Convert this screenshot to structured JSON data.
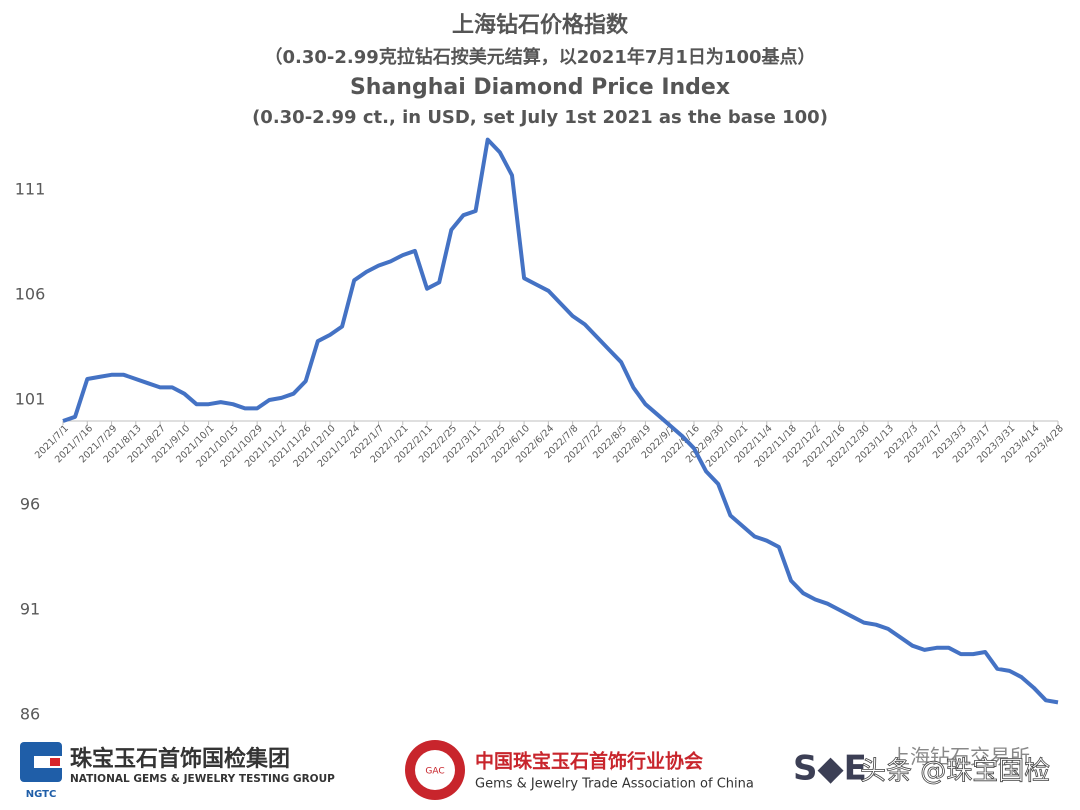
{
  "chart_data": {
    "type": "line",
    "title": "上海钻石价格指数",
    "subtitle": "（0.30-2.99克拉钻石按美元结算，以2021年7月1日为100基点）",
    "title_en": "Shanghai Diamond Price Index",
    "subtitle_en": "(0.30-2.99 ct., in USD, set July 1st 2021 as the base 100)",
    "categories": [
      "2021/7/1",
      null,
      "2021/7/16",
      null,
      "2021/7/29",
      null,
      "2021/8/13",
      null,
      "2021/8/27",
      null,
      "2021/9/10",
      null,
      "2021/10/1",
      null,
      "2021/10/15",
      null,
      "2021/10/29",
      null,
      "2021/11/12",
      null,
      "2021/11/26",
      null,
      "2021/12/10",
      null,
      "2021/12/24",
      null,
      "2022/1/7",
      null,
      "2022/1/21",
      null,
      "2022/2/11",
      null,
      "2022/2/25",
      null,
      "2022/3/11",
      null,
      "2022/3/25",
      null,
      "2022/6/10",
      null,
      "2022/6/24",
      null,
      "2022/7/8",
      null,
      "2022/7/22",
      null,
      "2022/8/5",
      null,
      "2022/8/19",
      null,
      "2022/9/2",
      null,
      "2022/9/16",
      null,
      "2022/9/30",
      null,
      "2022/10/21",
      null,
      "2022/11/4",
      null,
      "2022/11/18",
      null,
      "2022/12/2",
      null,
      "2022/12/16",
      null,
      "2022/12/30",
      null,
      "2023/1/13",
      null,
      "2023/2/3",
      null,
      "2023/2/17",
      null,
      "2023/3/3",
      null,
      "2023/3/17",
      null,
      "2023/3/31",
      null,
      "2023/4/14",
      null,
      "2023/4/28"
    ],
    "series": [
      {
        "name": "Shanghai Diamond Price Index",
        "color": "#4472c4",
        "values": [
          100.0,
          100.2,
          102.0,
          102.1,
          102.2,
          102.2,
          102.0,
          101.8,
          101.6,
          101.6,
          101.3,
          100.8,
          100.8,
          100.9,
          100.8,
          100.6,
          100.6,
          101.0,
          101.1,
          101.3,
          101.9,
          103.8,
          104.1,
          104.5,
          106.7,
          107.1,
          107.4,
          107.6,
          107.9,
          108.1,
          106.3,
          106.6,
          109.1,
          109.8,
          110.0,
          113.4,
          112.8,
          111.7,
          106.8,
          106.5,
          106.2,
          105.6,
          105.0,
          104.6,
          104.0,
          103.4,
          102.8,
          101.6,
          100.8,
          100.3,
          99.8,
          99.3,
          98.7,
          97.6,
          97.0,
          95.5,
          95.0,
          94.5,
          94.3,
          94.0,
          92.4,
          91.8,
          91.5,
          91.3,
          91.0,
          90.7,
          90.4,
          90.3,
          90.1,
          89.7,
          89.3,
          89.1,
          89.2,
          89.2,
          88.9,
          88.9,
          89.0,
          88.2,
          88.1,
          87.8,
          87.3,
          86.7,
          86.6
        ]
      }
    ],
    "ylim": [
      86,
      114
    ],
    "yticks": [
      86,
      91,
      96,
      101,
      106,
      111
    ],
    "x_axis_crosses": 100,
    "grid": false
  },
  "footer": {
    "ngtc_cn": "珠宝玉石首饰国检集团",
    "ngtc_en": "NATIONAL GEMS & JEWELRY TESTING GROUP",
    "ngtc_logo": "NGTC",
    "gac_cn": "中国珠宝玉石首饰行业协会",
    "gac_en": "Gems & Jewelry Trade Association of China",
    "gac_logo": "GAC",
    "sde_cn": "上海钻石交易所",
    "sde_logo": "S◆E",
    "watermark": "头条 @珠宝国检"
  }
}
